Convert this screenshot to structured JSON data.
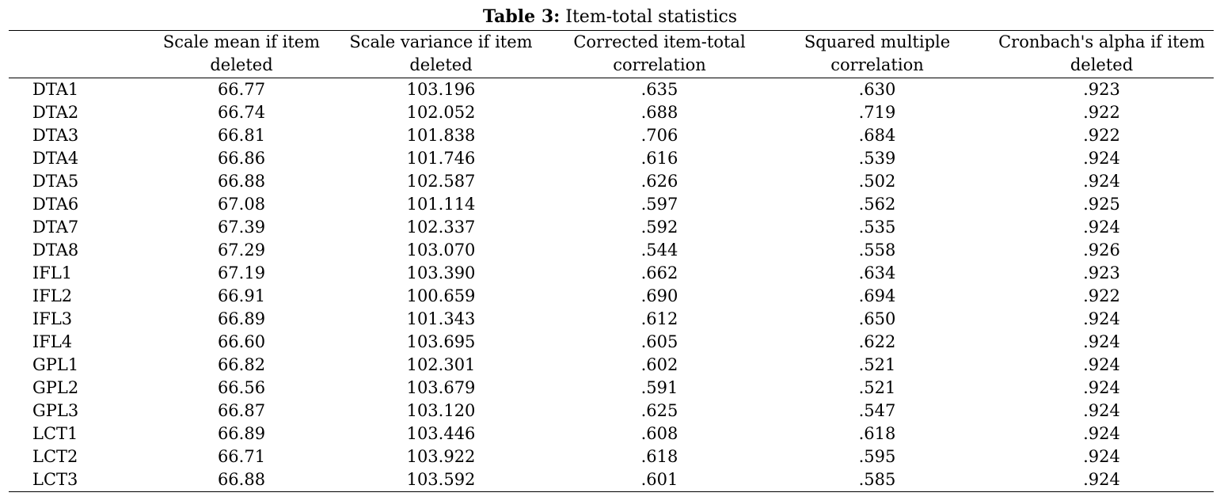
{
  "caption": {
    "label": "Table 3:",
    "title": "Item-total statistics"
  },
  "table": {
    "headers": [
      "",
      "Scale mean if item deleted",
      "Scale variance if item deleted",
      "Corrected item-total correlation",
      "Squared multiple correlation",
      "Cronbach's alpha if item deleted"
    ],
    "rows": [
      [
        "DTA1",
        "66.77",
        "103.196",
        ".635",
        ".630",
        ".923"
      ],
      [
        "DTA2",
        "66.74",
        "102.052",
        ".688",
        ".719",
        ".922"
      ],
      [
        "DTA3",
        "66.81",
        "101.838",
        ".706",
        ".684",
        ".922"
      ],
      [
        "DTA4",
        "66.86",
        "101.746",
        ".616",
        ".539",
        ".924"
      ],
      [
        "DTA5",
        "66.88",
        "102.587",
        ".626",
        ".502",
        ".924"
      ],
      [
        "DTA6",
        "67.08",
        "101.114",
        ".597",
        ".562",
        ".925"
      ],
      [
        "DTA7",
        "67.39",
        "102.337",
        ".592",
        ".535",
        ".924"
      ],
      [
        "DTA8",
        "67.29",
        "103.070",
        ".544",
        ".558",
        ".926"
      ],
      [
        "IFL1",
        "67.19",
        "103.390",
        ".662",
        ".634",
        ".923"
      ],
      [
        "IFL2",
        "66.91",
        "100.659",
        ".690",
        ".694",
        ".922"
      ],
      [
        "IFL3",
        "66.89",
        "101.343",
        ".612",
        ".650",
        ".924"
      ],
      [
        "IFL4",
        "66.60",
        "103.695",
        ".605",
        ".622",
        ".924"
      ],
      [
        "GPL1",
        "66.82",
        "102.301",
        ".602",
        ".521",
        ".924"
      ],
      [
        "GPL2",
        "66.56",
        "103.679",
        ".591",
        ".521",
        ".924"
      ],
      [
        "GPL3",
        "66.87",
        "103.120",
        ".625",
        ".547",
        ".924"
      ],
      [
        "LCT1",
        "66.89",
        "103.446",
        ".608",
        ".618",
        ".924"
      ],
      [
        "LCT2",
        "66.71",
        "103.922",
        ".618",
        ".595",
        ".924"
      ],
      [
        "LCT3",
        "66.88",
        "103.592",
        ".601",
        ".585",
        ".924"
      ]
    ]
  }
}
